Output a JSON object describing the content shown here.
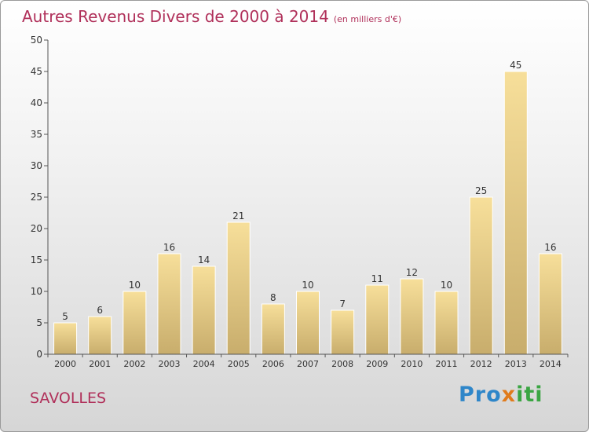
{
  "title": "Autres Revenus Divers de 2000 à 2014",
  "subtitle": "(en milliers d'€)",
  "location": "SAVOLLES",
  "logo": {
    "part1": "Pro",
    "part2": "x",
    "part3": "iti"
  },
  "colors": {
    "title": "#b0305a",
    "bar_top": "#f7df9a",
    "bar_bottom": "#c8ad6c",
    "axis": "#555555"
  },
  "chart_data": {
    "type": "bar",
    "categories": [
      "2000",
      "2001",
      "2002",
      "2003",
      "2004",
      "2005",
      "2006",
      "2007",
      "2008",
      "2009",
      "2010",
      "2011",
      "2012",
      "2013",
      "2014"
    ],
    "values": [
      5,
      6,
      10,
      16,
      14,
      21,
      8,
      10,
      7,
      11,
      12,
      10,
      25,
      45,
      16
    ],
    "ylim": [
      0,
      50
    ],
    "yticks": [
      0,
      5,
      10,
      15,
      20,
      25,
      30,
      35,
      40,
      45,
      50
    ],
    "grid": false,
    "data_labels": true
  }
}
